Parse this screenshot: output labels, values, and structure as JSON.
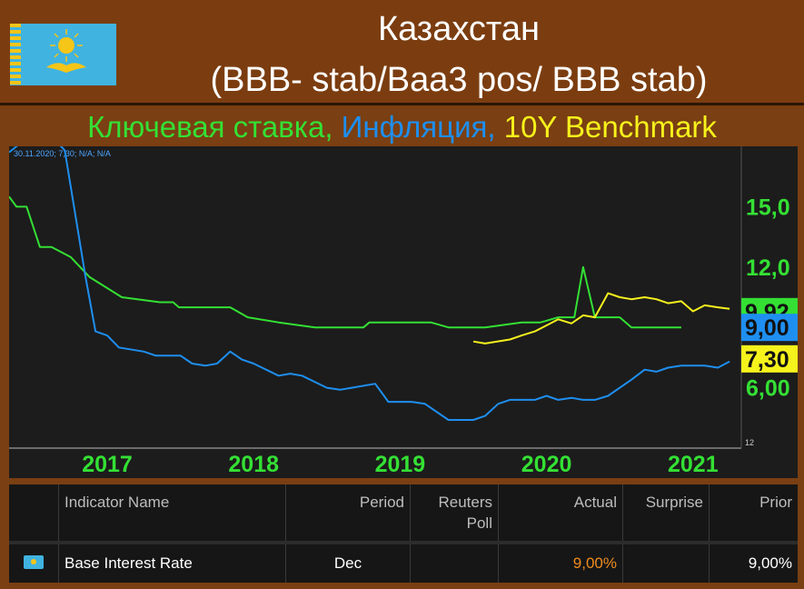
{
  "header": {
    "title_line1": "Казахстан",
    "title_line2": "(BBB- stab/Baa3 pos/ BBB stab)"
  },
  "subtitle": {
    "part1": "Ключевая ставка,",
    "part2": "Инфляция,",
    "part3": "10Y Benchmark"
  },
  "colors": {
    "rate": "#34e034",
    "inflation": "#1e8ff0",
    "benchmark": "#f6f21c",
    "background": "#7a3f12",
    "actual": "#f08c1e"
  },
  "chart_data": {
    "type": "line",
    "hover_readout": "30.11.2020; 7,30; N/A; N/A",
    "x_ticks": [
      "2017",
      "2018",
      "2019",
      "2020",
      "2021"
    ],
    "y_ticks": [
      "6,00",
      "12,0",
      "15,0"
    ],
    "y_tick_small": "12",
    "xlim": [
      2016.33,
      2021.33
    ],
    "ylim": [
      3.0,
      18.0
    ],
    "last_value_labels": [
      "9,92",
      "9,00",
      "7,30"
    ],
    "series": [
      {
        "key": "rate",
        "points": [
          [
            2016.33,
            15.5
          ],
          [
            2016.38,
            15.0
          ],
          [
            2016.45,
            15.0
          ],
          [
            2016.54,
            13.0
          ],
          [
            2016.62,
            13.0
          ],
          [
            2016.75,
            12.5
          ],
          [
            2016.88,
            11.5
          ],
          [
            2017.1,
            10.5
          ],
          [
            2017.36,
            10.25
          ],
          [
            2017.45,
            10.25
          ],
          [
            2017.49,
            10.0
          ],
          [
            2017.55,
            10.0
          ],
          [
            2017.75,
            10.0
          ],
          [
            2017.84,
            10.0
          ],
          [
            2017.96,
            9.5
          ],
          [
            2018.17,
            9.25
          ],
          [
            2018.42,
            9.0
          ],
          [
            2018.58,
            9.0
          ],
          [
            2018.75,
            9.0
          ],
          [
            2018.79,
            9.25
          ],
          [
            2019.08,
            9.25
          ],
          [
            2019.21,
            9.25
          ],
          [
            2019.33,
            9.0
          ],
          [
            2019.58,
            9.0
          ],
          [
            2019.83,
            9.25
          ],
          [
            2019.96,
            9.25
          ],
          [
            2020.08,
            9.5
          ],
          [
            2020.19,
            9.5
          ],
          [
            2020.25,
            12.0
          ],
          [
            2020.33,
            9.5
          ],
          [
            2020.5,
            9.5
          ],
          [
            2020.58,
            9.0
          ],
          [
            2020.92,
            9.0
          ]
        ]
      },
      {
        "key": "inflation",
        "points": [
          [
            2016.33,
            17.7
          ],
          [
            2016.5,
            18.7
          ],
          [
            2016.62,
            18.5
          ],
          [
            2016.71,
            17.8
          ],
          [
            2016.85,
            11.6
          ],
          [
            2016.92,
            8.8
          ],
          [
            2017.0,
            8.6
          ],
          [
            2017.08,
            8.0
          ],
          [
            2017.25,
            7.8
          ],
          [
            2017.33,
            7.6
          ],
          [
            2017.5,
            7.6
          ],
          [
            2017.58,
            7.2
          ],
          [
            2017.67,
            7.1
          ],
          [
            2017.75,
            7.2
          ],
          [
            2017.84,
            7.8
          ],
          [
            2017.92,
            7.4
          ],
          [
            2018.0,
            7.2
          ],
          [
            2018.17,
            6.6
          ],
          [
            2018.25,
            6.7
          ],
          [
            2018.33,
            6.6
          ],
          [
            2018.5,
            6.0
          ],
          [
            2018.59,
            5.9
          ],
          [
            2018.67,
            6.0
          ],
          [
            2018.83,
            6.2
          ],
          [
            2018.92,
            5.3
          ],
          [
            2019.08,
            5.3
          ],
          [
            2019.17,
            5.2
          ],
          [
            2019.33,
            4.4
          ],
          [
            2019.5,
            4.4
          ],
          [
            2019.58,
            4.6
          ],
          [
            2019.67,
            5.2
          ],
          [
            2019.75,
            5.4
          ],
          [
            2019.92,
            5.4
          ],
          [
            2020.0,
            5.6
          ],
          [
            2020.08,
            5.4
          ],
          [
            2020.17,
            5.5
          ],
          [
            2020.25,
            5.4
          ],
          [
            2020.33,
            5.4
          ],
          [
            2020.42,
            5.6
          ],
          [
            2020.58,
            6.4
          ],
          [
            2020.67,
            6.9
          ],
          [
            2020.75,
            6.8
          ],
          [
            2020.83,
            7.0
          ],
          [
            2020.92,
            7.1
          ],
          [
            2021.0,
            7.1
          ],
          [
            2021.08,
            7.1
          ],
          [
            2021.17,
            7.0
          ],
          [
            2021.25,
            7.3
          ]
        ]
      },
      {
        "key": "benchmark",
        "points": [
          [
            2019.5,
            8.3
          ],
          [
            2019.58,
            8.2
          ],
          [
            2019.75,
            8.4
          ],
          [
            2019.83,
            8.6
          ],
          [
            2019.92,
            8.8
          ],
          [
            2020.0,
            9.1
          ],
          [
            2020.08,
            9.4
          ],
          [
            2020.17,
            9.2
          ],
          [
            2020.25,
            9.6
          ],
          [
            2020.33,
            9.5
          ],
          [
            2020.42,
            10.7
          ],
          [
            2020.5,
            10.5
          ],
          [
            2020.58,
            10.4
          ],
          [
            2020.67,
            10.5
          ],
          [
            2020.75,
            10.4
          ],
          [
            2020.83,
            10.2
          ],
          [
            2020.92,
            10.3
          ],
          [
            2021.0,
            9.8
          ],
          [
            2021.08,
            10.1
          ],
          [
            2021.17,
            10.0
          ],
          [
            2021.25,
            9.92
          ]
        ]
      }
    ]
  },
  "table": {
    "headers": {
      "indicator": "Indicator Name",
      "period": "Period",
      "poll_line1": "Reuters",
      "poll_line2": "Poll",
      "actual": "Actual",
      "surprise": "Surprise",
      "prior": "Prior"
    },
    "row": {
      "indicator": "Base Interest Rate",
      "period": "Dec",
      "poll": "",
      "actual": "9,00%",
      "surprise": "",
      "prior": "9,00%"
    }
  }
}
